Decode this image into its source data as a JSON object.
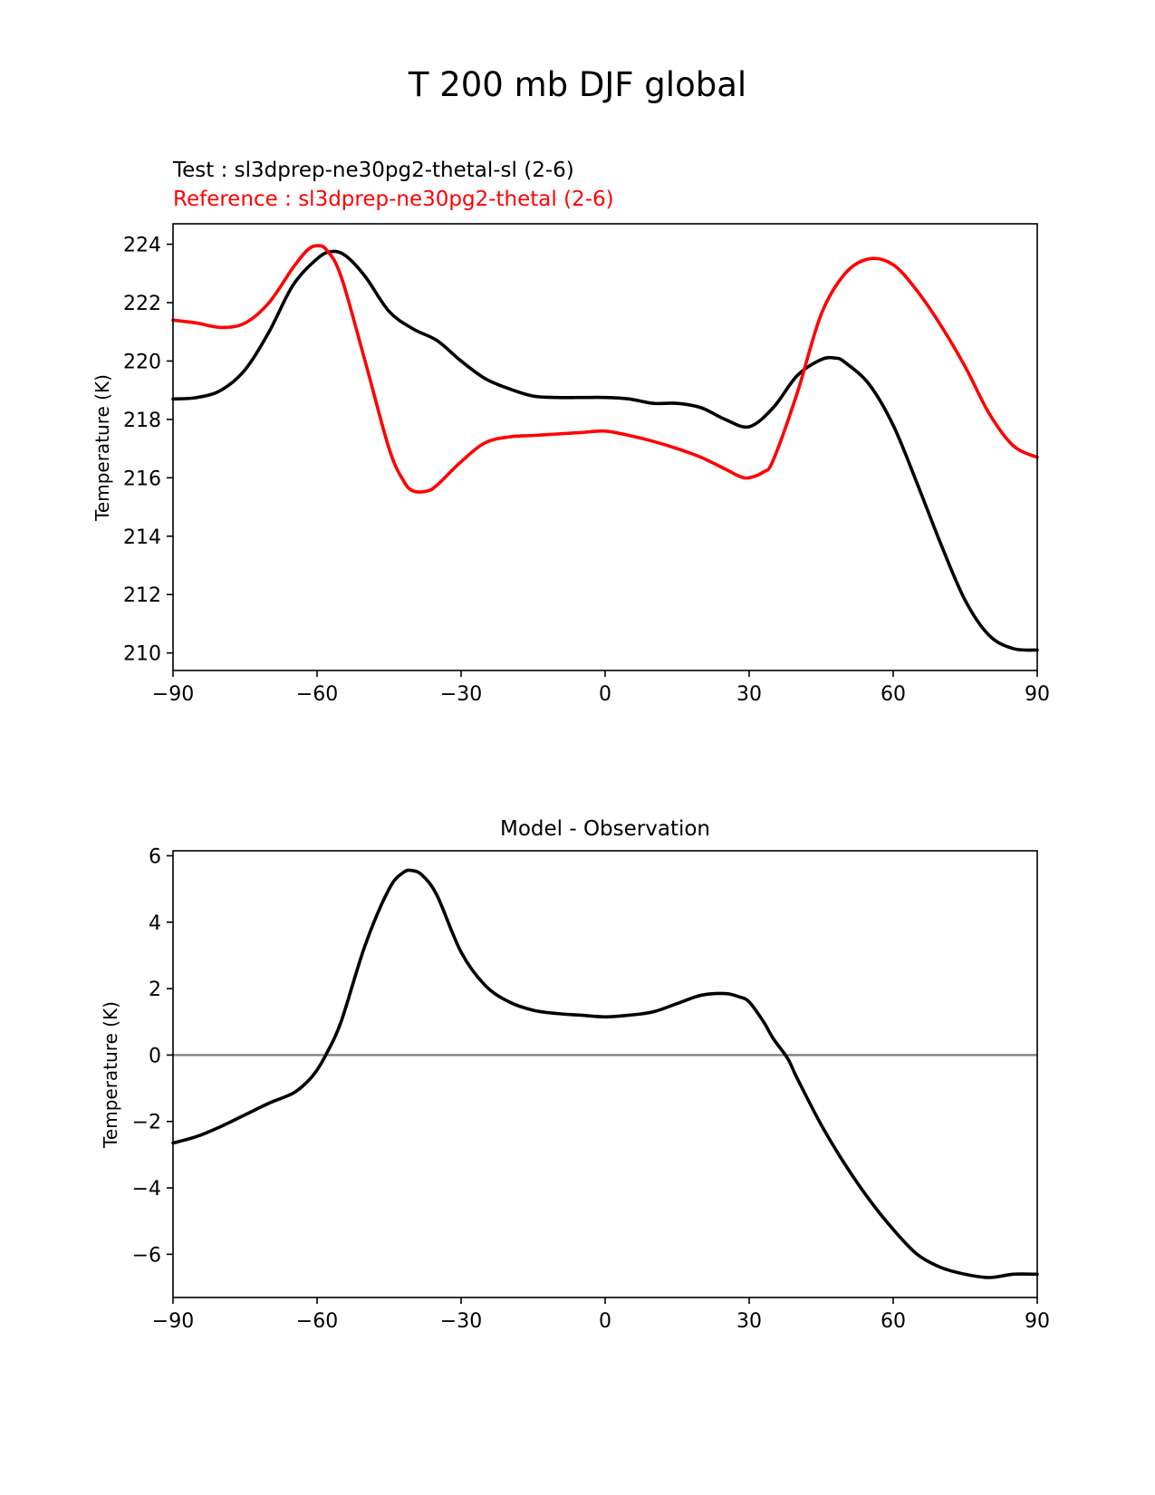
{
  "suptitle": "T 200 mb DJF global",
  "test_label": "Test : sl3dprep-ne30pg2-thetal-sl (2-6)",
  "reference_label": "Reference : sl3dprep-ne30pg2-thetal (2-6)",
  "colors": {
    "test": "#000000",
    "reference": "#ff0000",
    "zero_line": "#808080"
  },
  "chart_data": [
    {
      "type": "line",
      "title": "",
      "xlabel": "",
      "ylabel": "Temperature (K)",
      "xlim": [
        -90,
        90
      ],
      "ylim": [
        209.4,
        224.7
      ],
      "xticks": [
        -90,
        -60,
        -30,
        0,
        30,
        60,
        90
      ],
      "xtick_labels": [
        "−90",
        "−60",
        "−30",
        "0",
        "30",
        "60",
        "90"
      ],
      "yticks": [
        210,
        212,
        214,
        216,
        218,
        220,
        222,
        224
      ],
      "ytick_labels": [
        "210",
        "212",
        "214",
        "216",
        "218",
        "220",
        "222",
        "224"
      ],
      "grid": false,
      "series": [
        {
          "name": "Test : sl3dprep-ne30pg2-thetal-sl (2-6)",
          "color": "#000000",
          "x": [
            -90,
            -85,
            -80,
            -75,
            -70,
            -65,
            -60,
            -57,
            -54,
            -50,
            -45,
            -40,
            -35,
            -30,
            -25,
            -20,
            -15,
            -10,
            -5,
            0,
            5,
            10,
            15,
            20,
            25,
            30,
            35,
            40,
            45,
            48,
            50,
            55,
            60,
            65,
            70,
            75,
            80,
            85,
            90
          ],
          "y": [
            218.7,
            218.75,
            219.0,
            219.7,
            221.0,
            222.6,
            223.5,
            223.75,
            223.6,
            222.9,
            221.7,
            221.1,
            220.7,
            220.0,
            219.4,
            219.05,
            218.8,
            218.75,
            218.75,
            218.75,
            218.7,
            218.55,
            218.55,
            218.4,
            218.0,
            217.75,
            218.4,
            219.5,
            220.05,
            220.1,
            219.95,
            219.2,
            217.8,
            215.8,
            213.7,
            211.8,
            210.6,
            210.15,
            210.1
          ]
        },
        {
          "name": "Reference : sl3dprep-ne30pg2-thetal (2-6)",
          "color": "#ff0000",
          "x": [
            -90,
            -85,
            -80,
            -75,
            -70,
            -65,
            -62,
            -60,
            -58,
            -55,
            -50,
            -45,
            -42,
            -40,
            -37,
            -35,
            -30,
            -25,
            -20,
            -15,
            -10,
            -5,
            0,
            5,
            10,
            15,
            20,
            25,
            28,
            30,
            33,
            35,
            40,
            45,
            50,
            55,
            60,
            65,
            70,
            75,
            80,
            85,
            90
          ],
          "y": [
            221.4,
            221.3,
            221.15,
            221.3,
            222.0,
            223.2,
            223.8,
            223.95,
            223.8,
            222.9,
            220.0,
            217.0,
            215.9,
            215.55,
            215.55,
            215.75,
            216.55,
            217.2,
            217.4,
            217.45,
            217.5,
            217.55,
            217.6,
            217.45,
            217.25,
            217.0,
            216.7,
            216.3,
            216.05,
            216.0,
            216.2,
            216.6,
            218.9,
            221.6,
            223.0,
            223.5,
            223.3,
            222.4,
            221.2,
            219.8,
            218.2,
            217.1,
            216.7
          ]
        }
      ]
    },
    {
      "type": "line",
      "title": "Model - Observation",
      "xlabel": "",
      "ylabel": "Temperature (K)",
      "xlim": [
        -90,
        90
      ],
      "ylim": [
        -7.3,
        6.15
      ],
      "xticks": [
        -90,
        -60,
        -30,
        0,
        30,
        60,
        90
      ],
      "xtick_labels": [
        "−90",
        "−60",
        "−30",
        "0",
        "30",
        "60",
        "90"
      ],
      "yticks": [
        -6,
        -4,
        -2,
        0,
        2,
        4,
        6
      ],
      "ytick_labels": [
        "−6",
        "−4",
        "−2",
        "0",
        "2",
        "4",
        "6"
      ],
      "grid": false,
      "zero_line": true,
      "series": [
        {
          "name": "",
          "color": "#000000",
          "x": [
            -90,
            -85,
            -80,
            -75,
            -70,
            -65,
            -62,
            -60,
            -58,
            -55,
            -50,
            -45,
            -42,
            -40,
            -38,
            -35,
            -30,
            -25,
            -20,
            -15,
            -10,
            -5,
            0,
            5,
            10,
            15,
            20,
            25,
            28,
            30,
            33,
            35,
            38,
            40,
            45,
            50,
            55,
            60,
            65,
            70,
            75,
            80,
            85,
            90
          ],
          "y": [
            -2.65,
            -2.45,
            -2.15,
            -1.8,
            -1.45,
            -1.15,
            -0.8,
            -0.45,
            0.05,
            1.0,
            3.3,
            5.0,
            5.5,
            5.55,
            5.4,
            4.8,
            3.1,
            2.1,
            1.6,
            1.35,
            1.25,
            1.2,
            1.15,
            1.2,
            1.3,
            1.55,
            1.8,
            1.85,
            1.75,
            1.6,
            1.0,
            0.5,
            -0.1,
            -0.7,
            -2.1,
            -3.3,
            -4.35,
            -5.25,
            -6.0,
            -6.4,
            -6.6,
            -6.7,
            -6.6,
            -6.6
          ]
        }
      ]
    }
  ]
}
